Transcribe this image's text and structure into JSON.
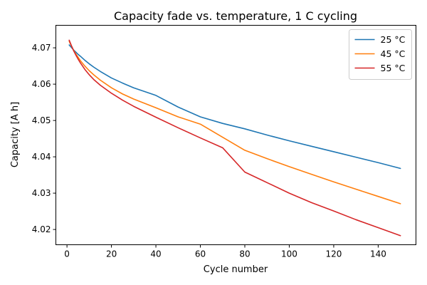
{
  "chart_data": {
    "type": "line",
    "title": "Capacity fade vs. temperature, 1 C cycling",
    "xlabel": "Cycle number",
    "ylabel": "Capacity [A h]",
    "xlim": [
      -5,
      157
    ],
    "ylim": [
      4.0158,
      4.0762
    ],
    "xticks": [
      0,
      20,
      40,
      60,
      80,
      100,
      120,
      140
    ],
    "yticks": [
      4.02,
      4.03,
      4.04,
      4.05,
      4.06,
      4.07
    ],
    "ytick_labels": [
      "4.02",
      "4.03",
      "4.04",
      "4.05",
      "4.06",
      "4.07"
    ],
    "grid": false,
    "legend_position": "top-right",
    "x": [
      1,
      2,
      3,
      4,
      5,
      6,
      8,
      10,
      12,
      15,
      20,
      25,
      30,
      40,
      50,
      60,
      70,
      80,
      90,
      100,
      110,
      120,
      130,
      140,
      150
    ],
    "series": [
      {
        "name": "25 °C",
        "color": "#1f77b4",
        "values": [
          4.0708,
          4.0701,
          4.0694,
          4.0688,
          4.0682,
          4.0677,
          4.0666,
          4.0656,
          4.0647,
          4.0635,
          4.0617,
          4.0603,
          4.059,
          4.0569,
          4.0537,
          4.051,
          4.0492,
          4.0477,
          4.046,
          4.0444,
          4.0429,
          4.0414,
          4.0399,
          4.0384,
          4.0368
        ]
      },
      {
        "name": "45 °C",
        "color": "#ff7f0e",
        "values": [
          4.0718,
          4.0705,
          4.0693,
          4.0683,
          4.0674,
          4.0665,
          4.065,
          4.0637,
          4.0626,
          4.0611,
          4.059,
          4.0573,
          4.0559,
          4.0535,
          4.051,
          4.049,
          4.0454,
          4.0418,
          4.0395,
          4.0373,
          4.0352,
          4.0331,
          4.0311,
          4.0291,
          4.0271
        ]
      },
      {
        "name": "55 °C",
        "color": "#d62728",
        "values": [
          4.0721,
          4.0706,
          4.0692,
          4.068,
          4.0669,
          4.0659,
          4.0641,
          4.0626,
          4.0613,
          4.0597,
          4.0575,
          4.0556,
          4.0539,
          4.0509,
          4.048,
          4.0452,
          4.0425,
          4.0358,
          4.0329,
          4.03,
          4.0274,
          4.0251,
          4.0227,
          4.0205,
          4.0183
        ]
      }
    ]
  }
}
